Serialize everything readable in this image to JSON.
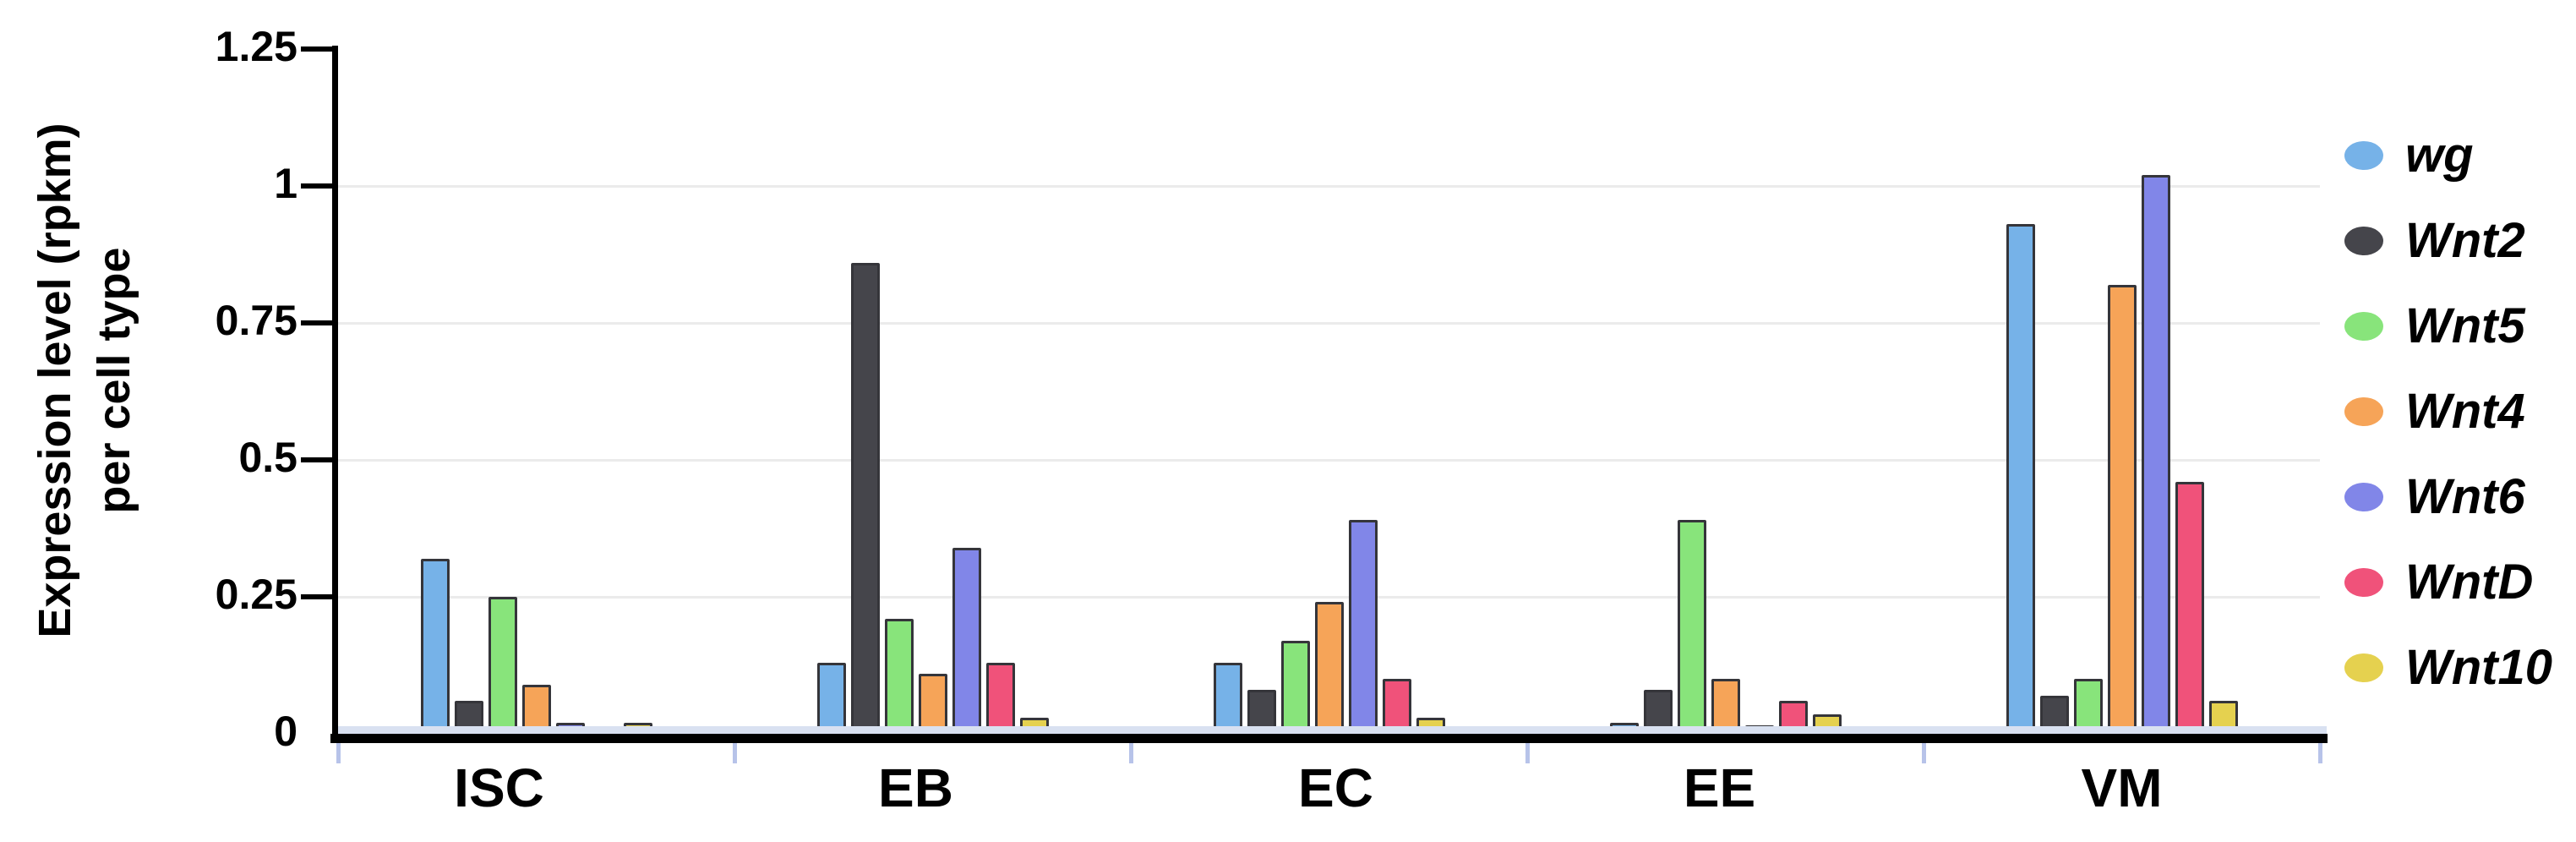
{
  "chart_data": {
    "type": "bar",
    "title": "",
    "ylabel": "Expression level (rpkm) per cell type",
    "ylabel_lines": [
      "Expression level (rpkm)",
      "per cell type"
    ],
    "xlabel": "",
    "categories": [
      "ISC",
      "EB",
      "EC",
      "EE",
      "VM"
    ],
    "series": [
      {
        "name": "wg",
        "color": "#76B2E8",
        "values": [
          0.32,
          0.13,
          0.13,
          0.02,
          0.93
        ]
      },
      {
        "name": "Wnt2",
        "color": "#45454B",
        "values": [
          0.06,
          0.86,
          0.08,
          0.08,
          0.07
        ]
      },
      {
        "name": "Wnt5",
        "color": "#88E47B",
        "values": [
          0.25,
          0.21,
          0.17,
          0.39,
          0.1
        ]
      },
      {
        "name": "Wnt4",
        "color": "#F6A458",
        "values": [
          0.09,
          0.11,
          0.24,
          0.1,
          0.82
        ]
      },
      {
        "name": "Wnt6",
        "color": "#8186E8",
        "values": [
          0.02,
          0.34,
          0.39,
          0.015,
          1.02
        ]
      },
      {
        "name": "WntD",
        "color": "#F0527A",
        "values": [
          0,
          0.13,
          0.1,
          0.06,
          0.46
        ]
      },
      {
        "name": "Wnt10",
        "color": "#E5D14F",
        "values": [
          0.02,
          0.03,
          0.03,
          0.035,
          0.06
        ]
      }
    ],
    "y_ticks": [
      {
        "value": 0,
        "label": "0"
      },
      {
        "value": 0.25,
        "label": "0.25"
      },
      {
        "value": 0.5,
        "label": "0.5"
      },
      {
        "value": 0.75,
        "label": "0.75"
      },
      {
        "value": 1,
        "label": "1"
      },
      {
        "value": 1.25,
        "label": "1.25"
      }
    ],
    "ylim": [
      0,
      1.25
    ],
    "grid": true,
    "legend_position": "right",
    "legend": [
      "wg",
      "Wnt2",
      "Wnt5",
      "Wnt4",
      "Wnt6",
      "WntD",
      "Wnt10"
    ]
  },
  "colors": {
    "background": "#FFFFFF",
    "axis": "#000000",
    "gridline": "#EBEBEB",
    "zero_strip": "#D9E1F1",
    "boundary_tick": "#B7C3E9",
    "bar_outline": "#35353A"
  }
}
